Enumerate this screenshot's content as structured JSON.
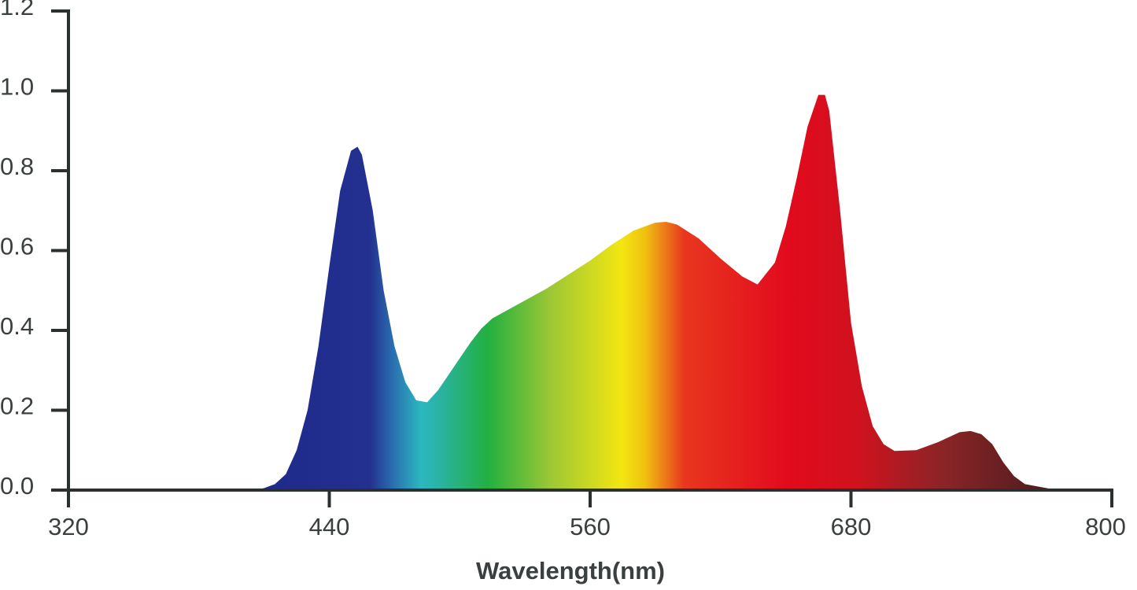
{
  "chart_data": {
    "type": "area",
    "x_label": "Wavelength(nm)",
    "x": [
      405,
      410,
      415,
      420,
      425,
      430,
      435,
      440,
      445,
      450,
      453,
      455,
      460,
      465,
      470,
      475,
      480,
      485,
      490,
      495,
      500,
      505,
      510,
      515,
      520,
      530,
      540,
      550,
      560,
      570,
      580,
      590,
      595,
      600,
      610,
      620,
      630,
      637,
      645,
      650,
      655,
      660,
      665,
      668,
      670,
      675,
      680,
      685,
      690,
      695,
      700,
      710,
      720,
      730,
      735,
      740,
      745,
      750,
      755,
      760,
      770,
      775
    ],
    "values": [
      0.0,
      0.005,
      0.015,
      0.04,
      0.1,
      0.2,
      0.36,
      0.56,
      0.75,
      0.85,
      0.86,
      0.84,
      0.7,
      0.5,
      0.36,
      0.27,
      0.225,
      0.22,
      0.25,
      0.29,
      0.33,
      0.37,
      0.405,
      0.43,
      0.445,
      0.475,
      0.505,
      0.54,
      0.575,
      0.615,
      0.65,
      0.67,
      0.672,
      0.665,
      0.63,
      0.58,
      0.535,
      0.515,
      0.57,
      0.66,
      0.78,
      0.91,
      0.99,
      0.99,
      0.95,
      0.7,
      0.42,
      0.26,
      0.16,
      0.115,
      0.098,
      0.1,
      0.12,
      0.145,
      0.148,
      0.14,
      0.115,
      0.07,
      0.035,
      0.015,
      0.005,
      0.0
    ],
    "xlim": [
      320,
      800
    ],
    "xticks": [
      320,
      440,
      560,
      680,
      800
    ],
    "ylim": [
      0,
      1.2
    ],
    "yticks": [
      {
        "value": 0,
        "label": "0.0"
      },
      0.2,
      0.4,
      0.6,
      0.8,
      {
        "value": 1,
        "label": "1.0"
      },
      1.2
    ]
  }
}
